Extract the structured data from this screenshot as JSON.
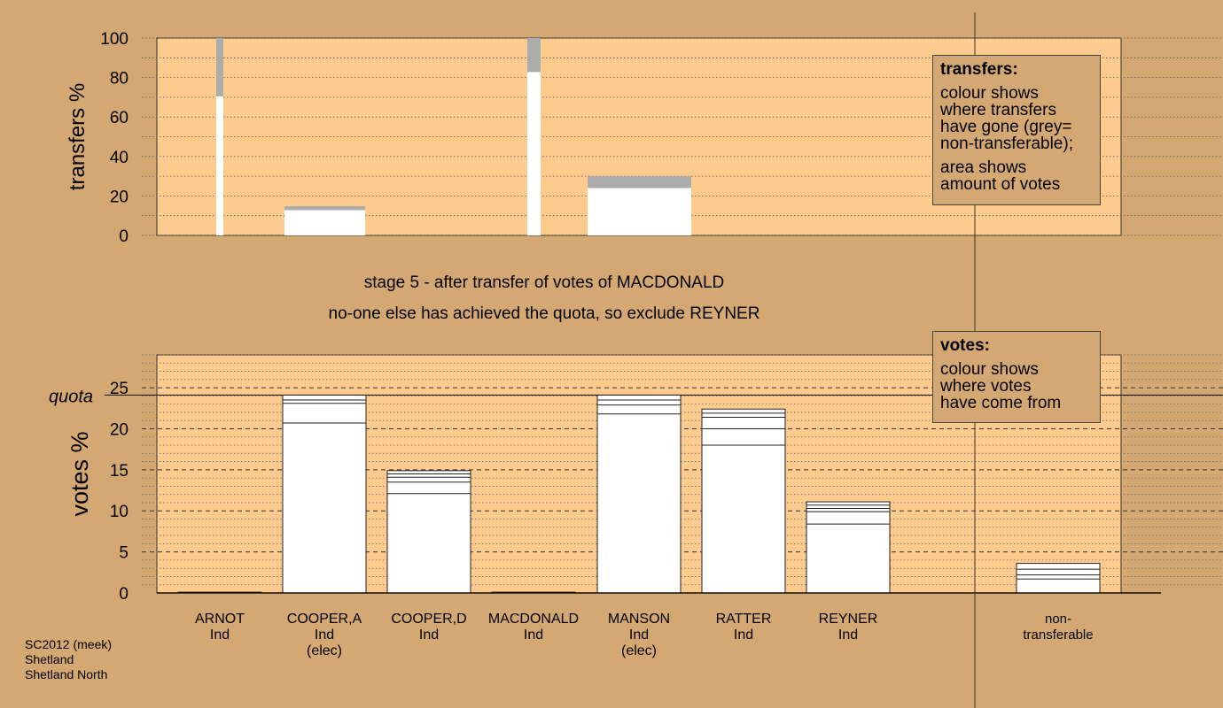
{
  "chart_data": [
    {
      "type": "bar",
      "ylabel": "transfers %",
      "ylim": [
        0,
        100
      ],
      "yticks": [
        0,
        20,
        40,
        60,
        80,
        100
      ],
      "bars": [
        {
          "white": 70.5,
          "grey": 29.5
        },
        {
          "white": 12.8,
          "grey": 2.0
        },
        {
          "white": 82.8,
          "grey": 17.2
        },
        {
          "white": 24.0,
          "grey": 6.0
        }
      ]
    },
    {
      "type": "bar",
      "ylabel": "votes %",
      "ylim": [
        0,
        29
      ],
      "yticks": [
        0,
        5,
        10,
        15,
        20,
        25
      ],
      "quota": 24.1,
      "quota_label": "quota",
      "categories": [
        {
          "name": "ARNOT",
          "party": "Ind",
          "status": "",
          "value": 0.1,
          "segments": []
        },
        {
          "name": "COOPER,A",
          "party": "Ind",
          "status": "(elec)",
          "value": 24.1,
          "segments": [
            20.7,
            23.1,
            23.5
          ]
        },
        {
          "name": "COOPER,D",
          "party": "Ind",
          "status": "",
          "value": 14.9,
          "segments": [
            12.1,
            13.5,
            14.1,
            14.5
          ]
        },
        {
          "name": "MACDONALD",
          "party": "Ind",
          "status": "",
          "value": 0.1,
          "segments": []
        },
        {
          "name": "MANSON",
          "party": "Ind",
          "status": "(elec)",
          "value": 24.1,
          "segments": [
            21.8,
            22.9,
            23.5
          ]
        },
        {
          "name": "RATTER",
          "party": "Ind",
          "status": "",
          "value": 22.4,
          "segments": [
            18.0,
            20.0,
            21.4,
            21.9
          ]
        },
        {
          "name": "REYNER",
          "party": "Ind",
          "status": "",
          "value": 11.1,
          "segments": [
            8.4,
            9.9,
            10.3,
            10.7
          ]
        },
        {
          "name": "non-",
          "party": "transferable",
          "status": "",
          "value": 3.6,
          "segments": [
            1.7,
            2.2,
            2.9
          ]
        }
      ]
    }
  ],
  "legend_transfers": {
    "title": "transfers:",
    "line1": "colour shows",
    "line2": "where transfers",
    "line3": "have gone (grey=",
    "line4": "non-transferable);",
    "line5": "area shows",
    "line6": "amount of votes"
  },
  "legend_votes": {
    "title": "votes:",
    "line1": "colour shows",
    "line2": "where votes",
    "line3": "have come from"
  },
  "stage_line1": "stage 5 - after transfer of votes of MACDONALD",
  "stage_line2": "no-one else has achieved the quota, so exclude REYNER",
  "footer": {
    "line1": "SC2012 (meek)",
    "line2": "Shetland",
    "line3": "Shetland North"
  }
}
